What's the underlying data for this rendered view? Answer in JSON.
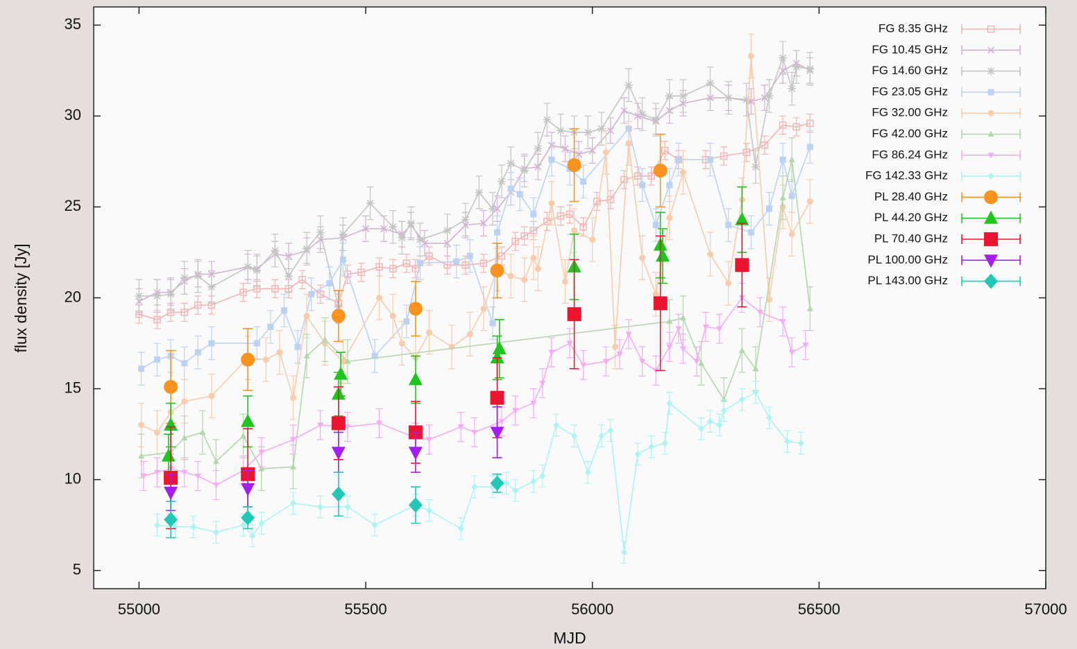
{
  "chart_data": {
    "type": "scatter",
    "xlabel": "MJD",
    "ylabel": "flux density  [Jy]",
    "xlim": [
      54900,
      57000
    ],
    "ylim": [
      4,
      36
    ],
    "xticks": [
      55000,
      55500,
      56000,
      56500,
      57000
    ],
    "yticks": [
      5,
      10,
      15,
      20,
      25,
      30,
      35
    ],
    "legend": "upper right",
    "series": [
      {
        "name": "FG 8.35 GHz",
        "color": "#f4b4b4",
        "marker": "open-square",
        "line": true,
        "error": 0.5,
        "x": [
          55000,
          55040,
          55070,
          55100,
          55130,
          55160,
          55230,
          55260,
          55300,
          55330,
          55360,
          55400,
          55440,
          55460,
          55490,
          55530,
          55560,
          55590,
          55610,
          55640,
          55680,
          55720,
          55760,
          55800,
          55830,
          55850,
          55870,
          55900,
          55930,
          55950,
          55980,
          56010,
          56040,
          56070,
          56100,
          56130,
          56160,
          56190,
          56250,
          56290,
          56340,
          56380,
          56420,
          56450,
          56480
        ],
        "values": [
          19.1,
          18.8,
          19.2,
          19.2,
          19.6,
          19.6,
          20.3,
          20.5,
          20.5,
          20.5,
          21.0,
          20.2,
          19.7,
          21.3,
          21.4,
          21.7,
          21.6,
          21.9,
          21.6,
          22.3,
          21.8,
          21.8,
          21.9,
          22.3,
          23.1,
          23.4,
          23.7,
          24.2,
          24.5,
          24.6,
          23.9,
          25.3,
          25.4,
          26.5,
          26.7,
          26.7,
          28.1,
          27.6,
          27.6,
          27.8,
          28.0,
          28.4,
          29.5,
          29.4,
          29.6
        ]
      },
      {
        "name": "FG 10.45 GHz",
        "color": "#d4b0d4",
        "marker": "cross",
        "line": true,
        "error": 0.7,
        "x": [
          55000,
          55040,
          55070,
          55100,
          55130,
          55160,
          55240,
          55260,
          55300,
          55330,
          55370,
          55400,
          55450,
          55500,
          55540,
          55580,
          55600,
          55630,
          55680,
          55720,
          55760,
          55790,
          55820,
          55850,
          55880,
          55910,
          55940,
          55970,
          56000,
          56040,
          56070,
          56100,
          56140,
          56170,
          56200,
          56260,
          56300,
          56350,
          56380,
          56420,
          56450,
          56480
        ],
        "values": [
          19.8,
          20.3,
          20.3,
          20.9,
          21.3,
          21.3,
          21.7,
          21.6,
          22.4,
          22.3,
          22.6,
          23.2,
          23.3,
          23.8,
          23.8,
          23.5,
          24.0,
          23.0,
          23.0,
          24.0,
          24.1,
          24.9,
          25.8,
          27.1,
          27.2,
          28.4,
          28.2,
          27.9,
          28.1,
          29.2,
          30.3,
          30.0,
          29.7,
          30.3,
          30.7,
          31.0,
          31.0,
          30.8,
          31.0,
          32.5,
          32.9,
          32.5
        ]
      },
      {
        "name": "FG 14.60 GHz",
        "color": "#c4c4c4",
        "marker": "star",
        "line": true,
        "error": 0.9,
        "x": [
          55000,
          55040,
          55070,
          55100,
          55130,
          55160,
          55240,
          55260,
          55300,
          55330,
          55370,
          55400,
          55440,
          55450,
          55510,
          55560,
          55580,
          55600,
          55620,
          55680,
          55720,
          55750,
          55780,
          55800,
          55820,
          55850,
          55880,
          55900,
          55930,
          55960,
          55990,
          56020,
          56080,
          56110,
          56140,
          56170,
          56200,
          56260,
          56300,
          56340,
          56360,
          56390,
          56420,
          56440,
          56450,
          56480
        ],
        "values": [
          20.1,
          20.1,
          20.2,
          21.1,
          21.2,
          20.6,
          21.7,
          21.5,
          22.6,
          21.2,
          22.7,
          23.6,
          19.5,
          23.5,
          25.2,
          23.9,
          23.3,
          24.1,
          23.2,
          23.7,
          24.3,
          25.8,
          24.9,
          26.4,
          27.4,
          27.0,
          28.2,
          29.8,
          29.2,
          29.1,
          29.1,
          29.3,
          31.7,
          30.1,
          29.8,
          31.1,
          31.1,
          31.8,
          31.0,
          30.9,
          27.2,
          31.1,
          33.2,
          31.5,
          32.7,
          32.6
        ]
      },
      {
        "name": "FG 23.05 GHz",
        "color": "#bcd2f4",
        "marker": "square",
        "line": true,
        "error": 0.9,
        "x": [
          55005,
          55040,
          55070,
          55100,
          55130,
          55160,
          55260,
          55290,
          55320,
          55350,
          55380,
          55420,
          55450,
          55520,
          55590,
          55620,
          55700,
          55730,
          55780,
          55790,
          55820,
          55840,
          55870,
          55910,
          55950,
          55980,
          56080,
          56110,
          56140,
          56170,
          56190,
          56260,
          56300,
          56350,
          56390,
          56420,
          56440,
          56480
        ],
        "values": [
          16.1,
          16.6,
          16.8,
          16.4,
          17.0,
          17.5,
          17.5,
          18.4,
          19.3,
          17.3,
          20.2,
          20.8,
          22.1,
          16.8,
          18.7,
          21.9,
          22.0,
          22.3,
          18.6,
          23.6,
          26.0,
          25.7,
          24.6,
          27.6,
          27.1,
          26.4,
          29.3,
          26.2,
          24.0,
          26.2,
          27.6,
          27.6,
          24.0,
          23.6,
          24.9,
          27.6,
          25.6,
          28.3
        ]
      },
      {
        "name": "FG 32.00 GHz",
        "color": "#f8ccac",
        "marker": "circle",
        "line": true,
        "error": 1.2,
        "x": [
          55005,
          55040,
          55070,
          55100,
          55160,
          55240,
          55280,
          55310,
          55340,
          55370,
          55410,
          55450,
          55530,
          55560,
          55580,
          55610,
          55640,
          55690,
          55730,
          55760,
          55790,
          55820,
          55850,
          55870,
          55880,
          55910,
          55940,
          55960,
          56000,
          56030,
          56050,
          56080,
          56110,
          56140,
          56170,
          56200,
          56260,
          56300,
          56330,
          56350,
          56390,
          56420,
          56440,
          56480
        ],
        "values": [
          13.0,
          12.6,
          13.7,
          14.3,
          14.6,
          16.7,
          16.6,
          17.0,
          14.5,
          19.0,
          17.5,
          16.5,
          20.0,
          19.0,
          17.5,
          16.7,
          18.1,
          17.3,
          18.0,
          19.4,
          21.6,
          21.2,
          21.0,
          22.2,
          21.6,
          25.2,
          20.9,
          23.7,
          23.2,
          28.0,
          17.3,
          28.5,
          22.2,
          20.2,
          24.4,
          26.9,
          22.4,
          20.8,
          25.4,
          33.3,
          19.9,
          25.0,
          23.5,
          25.3
        ]
      },
      {
        "name": "FG 42.00 GHz",
        "color": "#b4d6ac",
        "marker": "triangle",
        "line": true,
        "error": 1.2,
        "x": [
          55005,
          55070,
          55100,
          55140,
          55170,
          55230,
          55270,
          55340,
          55370,
          55410,
          55460,
          56170,
          56200,
          56240,
          56290,
          56330,
          56360,
          56420,
          56440,
          56480
        ],
        "values": [
          11.3,
          11.5,
          12.3,
          12.6,
          11.0,
          12.4,
          10.6,
          10.7,
          16.8,
          17.7,
          16.5,
          18.7,
          18.9,
          16.4,
          14.4,
          17.1,
          16.1,
          25.5,
          27.6,
          19.4
        ]
      },
      {
        "name": "FG 86.24 GHz",
        "color": "#f4acf4",
        "marker": "triangle-down",
        "line": true,
        "error": 0.8,
        "x": [
          55010,
          55040,
          55070,
          55100,
          55130,
          55170,
          55230,
          55270,
          55340,
          55400,
          55460,
          55530,
          55610,
          55640,
          55710,
          55740,
          55800,
          55830,
          55870,
          55890,
          55910,
          55950,
          55980,
          56030,
          56060,
          56080,
          56110,
          56140,
          56170,
          56190,
          56200,
          56230,
          56250,
          56280,
          56330,
          56370,
          56420,
          56440,
          56470
        ],
        "values": [
          10.2,
          10.4,
          10.6,
          10.4,
          10.2,
          9.7,
          10.5,
          11.5,
          12.2,
          13.0,
          12.9,
          13.1,
          12.3,
          12.2,
          12.9,
          12.6,
          13.2,
          13.8,
          14.2,
          15.3,
          17.0,
          17.5,
          16.3,
          16.5,
          16.9,
          18.0,
          16.5,
          16.0,
          17.3,
          18.3,
          17.2,
          16.5,
          18.4,
          18.3,
          20.0,
          19.2,
          18.7,
          17.0,
          17.4
        ]
      },
      {
        "name": "FG 142.33 GHz",
        "color": "#acf4f4",
        "marker": "diamond",
        "line": true,
        "error": 0.6,
        "x": [
          55040,
          55080,
          55120,
          55170,
          55230,
          55250,
          55270,
          55340,
          55400,
          55460,
          55520,
          55610,
          55640,
          55710,
          55740,
          55780,
          55810,
          55830,
          55870,
          55890,
          55920,
          55960,
          55990,
          56020,
          56040,
          56070,
          56100,
          56130,
          56160,
          56170,
          56240,
          56260,
          56280,
          56290,
          56330,
          56360,
          56390,
          56430,
          56460
        ],
        "values": [
          7.5,
          7.4,
          7.4,
          7.1,
          7.5,
          6.9,
          7.6,
          8.7,
          8.5,
          8.5,
          7.5,
          8.6,
          8.3,
          7.3,
          9.6,
          9.6,
          9.8,
          9.4,
          9.9,
          10.2,
          13.0,
          12.4,
          10.4,
          12.4,
          12.7,
          6.0,
          11.4,
          11.8,
          12.0,
          14.2,
          12.8,
          13.2,
          13.0,
          13.8,
          14.4,
          14.8,
          13.4,
          12.1,
          12.0
        ]
      },
      {
        "name": "PL 28.40 GHz",
        "color": "#f7931e",
        "marker": "circle",
        "line": false,
        "x": [
          55070,
          55240,
          55440,
          55610,
          55790,
          55960,
          56150
        ],
        "values": [
          15.1,
          16.6,
          19.0,
          19.4,
          21.5,
          27.3,
          27.0
        ],
        "errors": [
          2.0,
          1.7,
          1.4,
          1.5,
          1.5,
          2.0,
          2.0
        ]
      },
      {
        "name": "PL 44.20 GHz",
        "color": "#1fc41f",
        "marker": "triangle",
        "line": false,
        "x": [
          55065,
          55070,
          55240,
          55440,
          55445,
          55610,
          55790,
          55795,
          55960,
          56150,
          56155,
          56330
        ],
        "values": [
          11.3,
          13.0,
          13.2,
          14.7,
          15.8,
          15.5,
          16.7,
          17.2,
          21.7,
          22.9,
          22.3,
          24.3
        ],
        "errors": [
          1.2,
          1.2,
          1.4,
          1.2,
          1.2,
          1.3,
          1.2,
          1.6,
          1.8,
          1.8,
          1.5,
          1.8
        ]
      },
      {
        "name": "PL 70.40 GHz",
        "color": "#ec1530",
        "marker": "square",
        "line": false,
        "x": [
          55070,
          55240,
          55440,
          55610,
          55790,
          55960,
          56150,
          56330
        ],
        "values": [
          10.1,
          10.3,
          13.1,
          12.6,
          14.5,
          19.1,
          19.7,
          21.8
        ],
        "errors": [
          2.8,
          2.5,
          2.0,
          1.7,
          2.2,
          3.0,
          3.7,
          2.3
        ]
      },
      {
        "name": "PL 100.00 GHz",
        "color": "#a21ff0",
        "marker": "triangle-down",
        "line": false,
        "x": [
          55070,
          55240,
          55440,
          55610,
          55790
        ],
        "values": [
          9.3,
          9.5,
          11.5,
          11.5,
          12.6
        ],
        "errors": [
          1.0,
          1.0,
          1.1,
          1.1,
          1.4
        ]
      },
      {
        "name": "PL 143.00 GHz",
        "color": "#22c8b6",
        "marker": "diamond",
        "line": false,
        "x": [
          55070,
          55240,
          55440,
          55610,
          55790
        ],
        "values": [
          7.8,
          7.9,
          9.2,
          8.6,
          9.8
        ],
        "errors": [
          1.0,
          0.6,
          1.2,
          1.0,
          0.5
        ]
      }
    ]
  }
}
